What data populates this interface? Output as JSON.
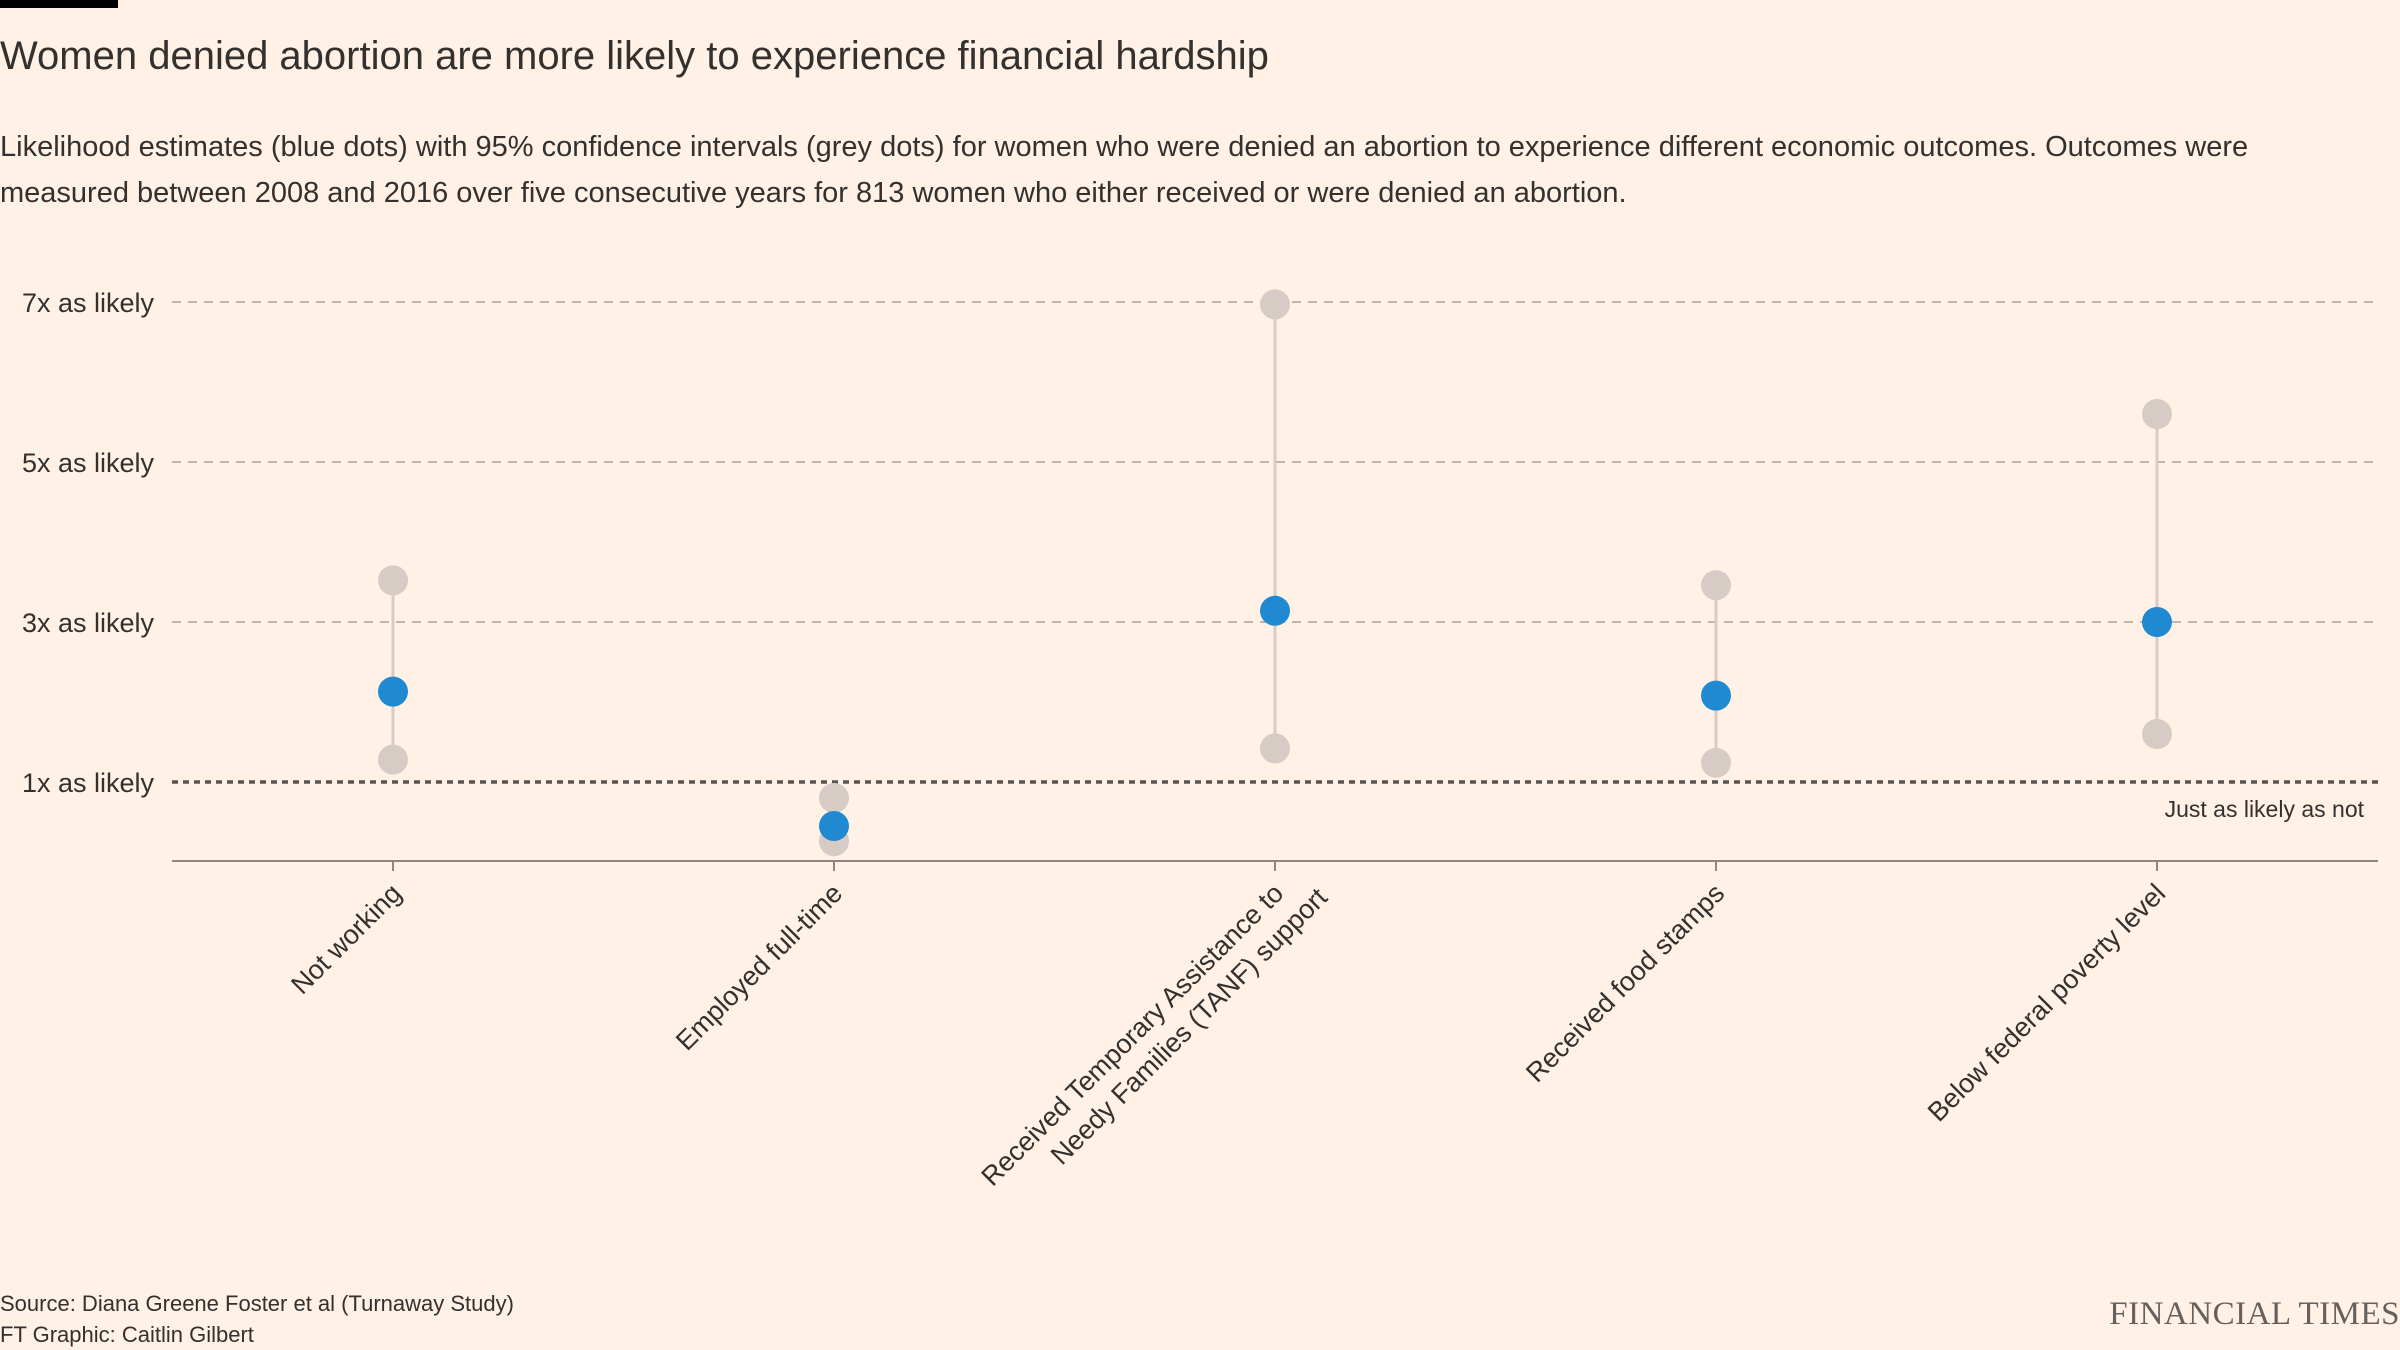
{
  "header": {
    "title": "Women denied abortion are more likely to experience financial hardship",
    "subtitle": "Likelihood estimates (blue dots) with 95% confidence intervals (grey dots) for women who were denied an abortion to experience different economic outcomes. Outcomes were measured between 2008 and 2016 over five consecutive years for 813 women who either received or were denied an abortion."
  },
  "chart_data": {
    "type": "scatter",
    "title": "Women denied abortion are more likely to experience financial hardship",
    "xlabel": "",
    "ylabel": "",
    "ylim": [
      0,
      7
    ],
    "grid": true,
    "y_ticks": [
      {
        "value": 1,
        "label": "1x as likely"
      },
      {
        "value": 3,
        "label": "3x as likely"
      },
      {
        "value": 5,
        "label": "5x as likely"
      },
      {
        "value": 7,
        "label": "7x as likely"
      }
    ],
    "reference_line": {
      "value": 1,
      "label": "Just as likely as not"
    },
    "categories": [
      [
        "Not working"
      ],
      [
        "Employed full-time"
      ],
      [
        "Received Temporary Assistance to",
        "Needy Families (TANF) support"
      ],
      [
        "Received food stamps"
      ],
      [
        "Below federal poverty level"
      ]
    ],
    "series": [
      {
        "name": "Likelihood estimate",
        "values": [
          2.13,
          0.45,
          3.14,
          2.08,
          3.0
        ]
      },
      {
        "name": "95% CI lower",
        "values": [
          1.28,
          0.26,
          1.42,
          1.24,
          1.6
        ]
      },
      {
        "name": "95% CI upper",
        "values": [
          3.52,
          0.8,
          6.97,
          3.46,
          5.6
        ]
      }
    ]
  },
  "colors": {
    "background": "#FFF1E5",
    "estimate": "#1F8AD2",
    "interval": "#D6CCC5",
    "text": "#33302E",
    "grid": "#BDB6AF",
    "reference": "#5A5450"
  },
  "footer": {
    "source": "Source: Diana Greene Foster et al (Turnaway Study)",
    "credit": "FT Graphic: Caitlin Gilbert",
    "brand": "FINANCIAL TIMES"
  }
}
